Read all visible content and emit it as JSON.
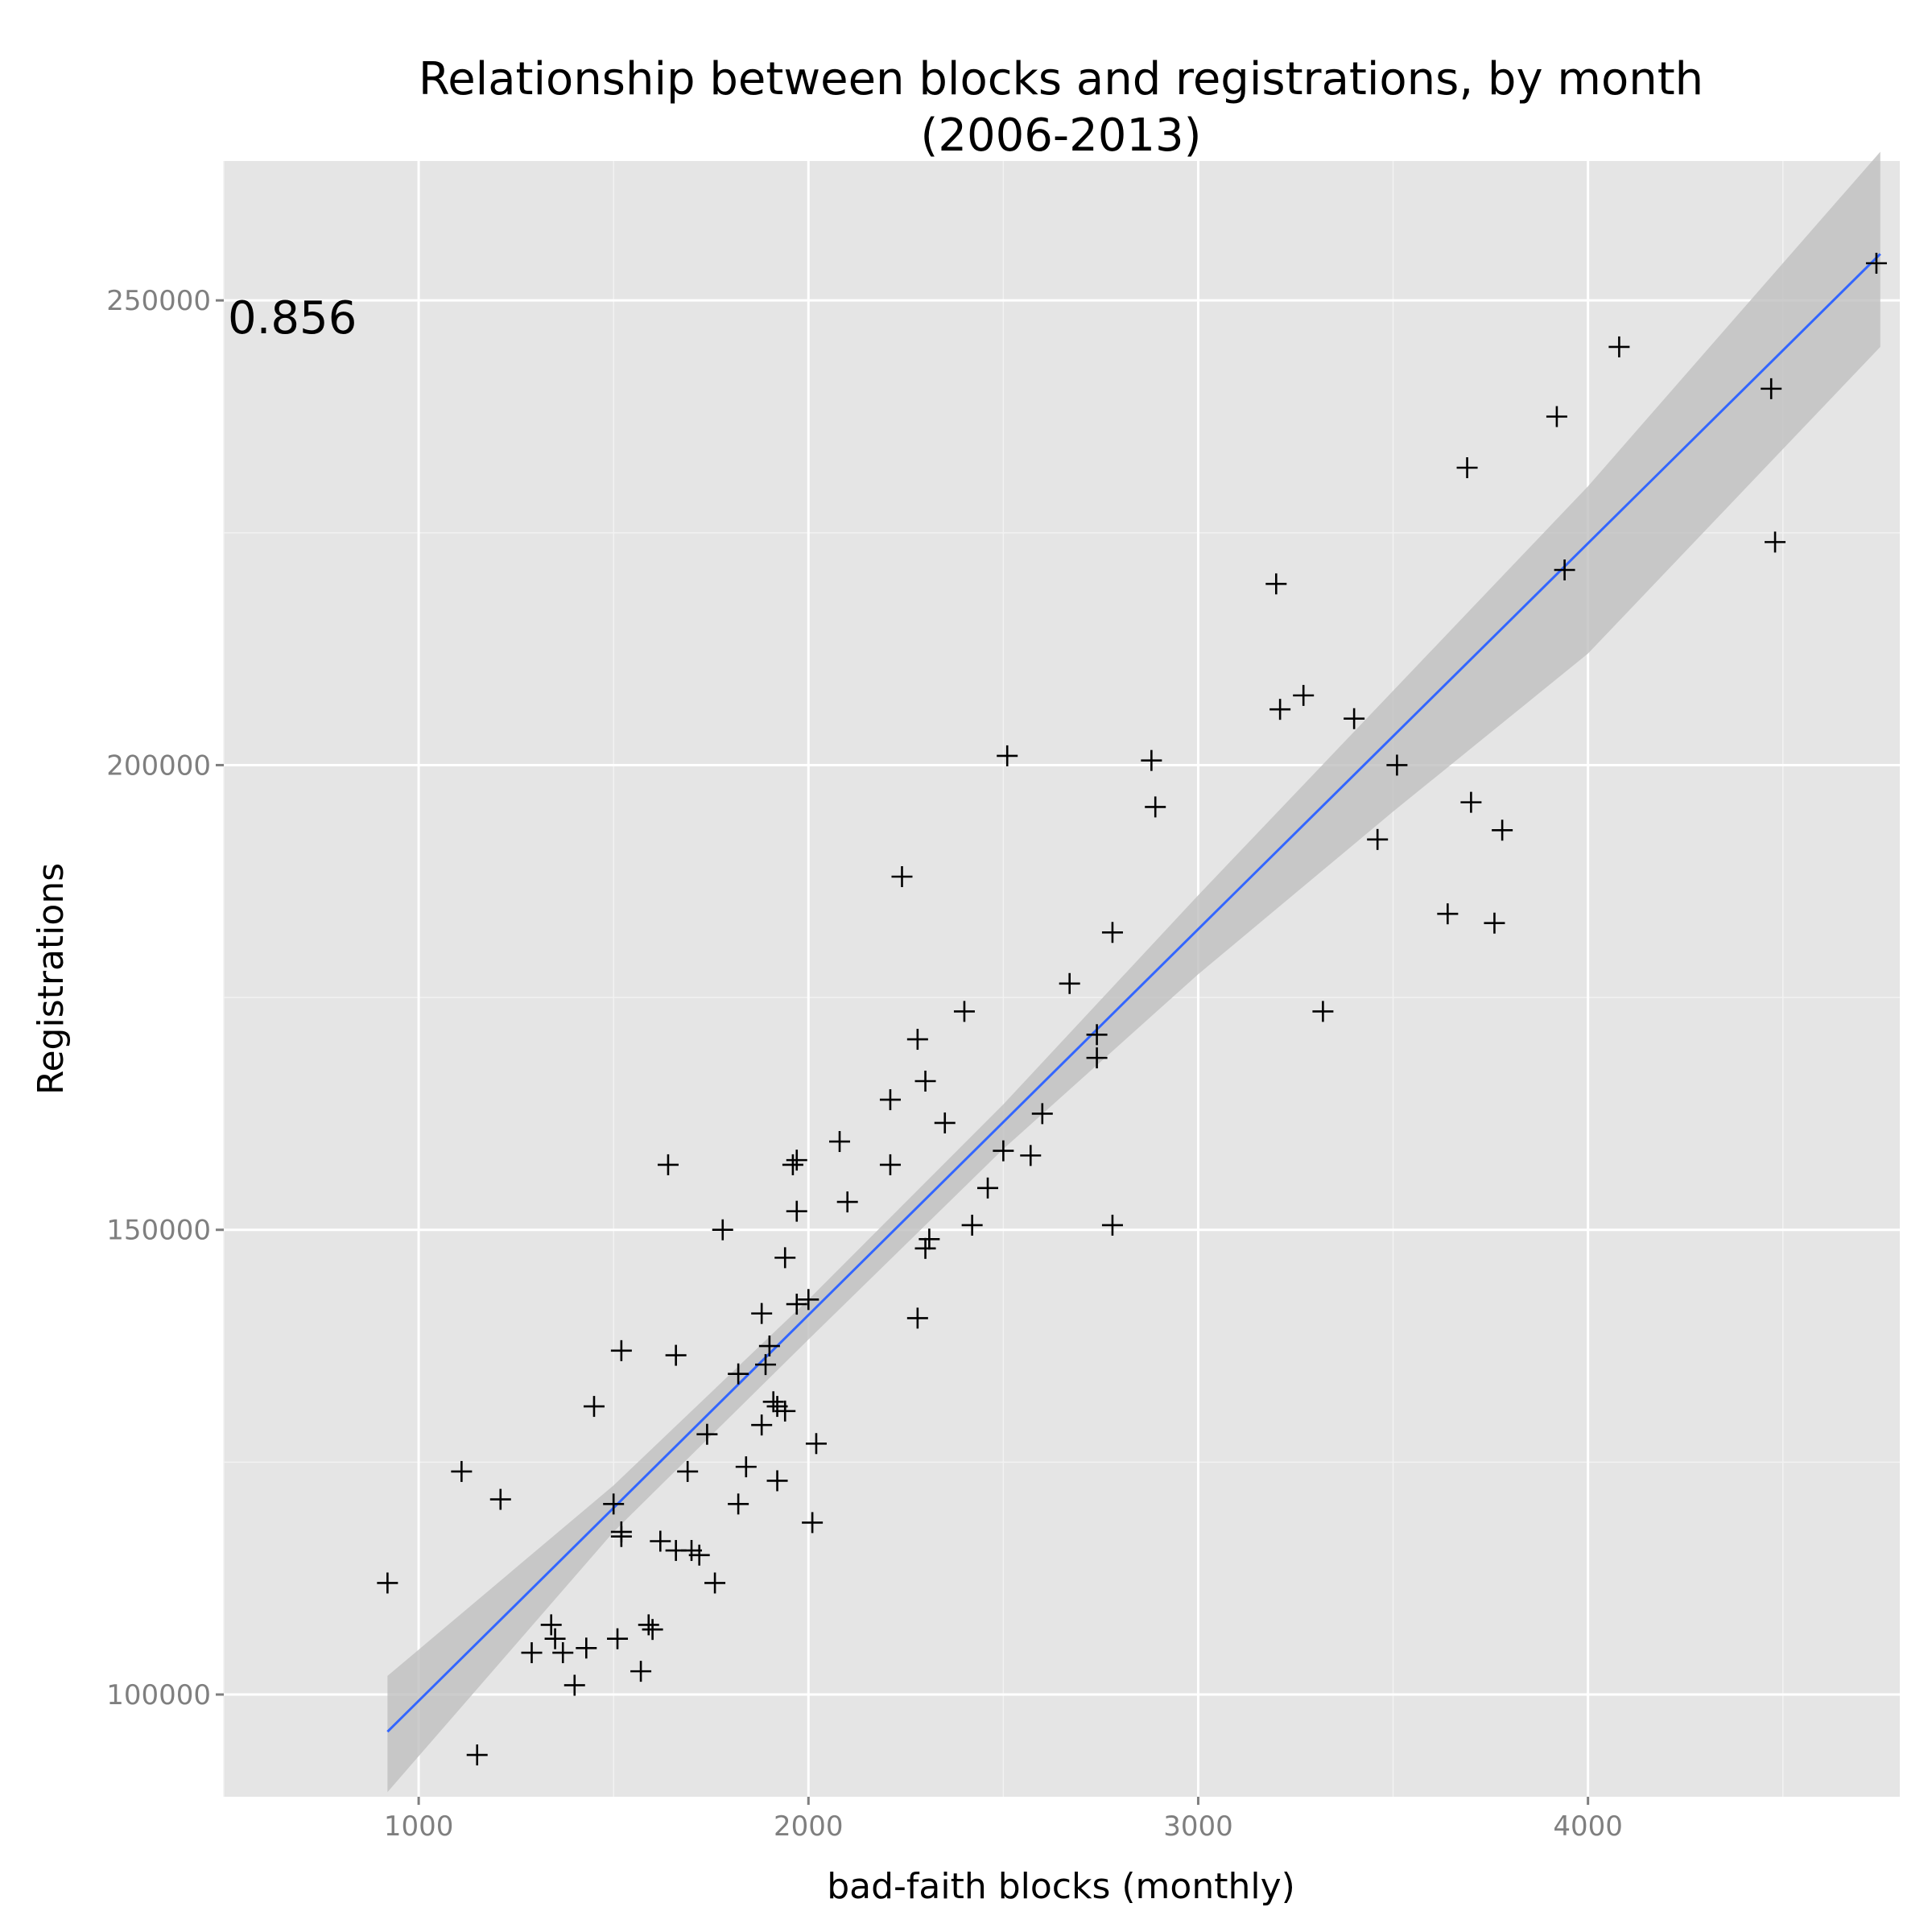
{
  "chart_data": {
    "type": "scatter",
    "title": "Relationship between blocks and registrations, by month",
    "subtitle": "(2006-2013)",
    "xlabel": "bad-faith blocks (monthly)",
    "ylabel": "Registrations",
    "annotation": "0.856",
    "xlim": [
      500,
      4800
    ],
    "ylim": [
      89000,
      265000
    ],
    "x_ticks": [
      1000,
      2000,
      3000,
      4000
    ],
    "y_ticks": [
      100000,
      150000,
      200000,
      250000
    ],
    "x_tick_labels": [
      "1000",
      "2000",
      "3000",
      "4000"
    ],
    "y_tick_labels": [
      "100000",
      "150000",
      "200000",
      "250000"
    ],
    "grid": true,
    "marker": "plus",
    "colors": {
      "panel": "#e5e5e5",
      "grid": "#ffffff",
      "fit_line": "#3366ff",
      "band": "#bfbfbf",
      "points": "#000000",
      "tick_label": "#7f7f7f"
    },
    "fit": {
      "x": [
        920,
        4750
      ],
      "y": [
        96000,
        255000
      ],
      "ci_x": [
        920,
        1500,
        2000,
        2500,
        3000,
        3500,
        4000,
        4750
      ],
      "ci_lower": [
        89500,
        117500,
        138200,
        158700,
        177500,
        195000,
        212000,
        245000
      ],
      "ci_upper": [
        102000,
        122500,
        142500,
        163500,
        186000,
        208000,
        230000,
        266000
      ]
    },
    "points": {
      "x": [
        4740,
        4080,
        3920,
        4470,
        3690,
        4480,
        3940,
        3200,
        3270,
        3210,
        3400,
        2510,
        2880,
        3510,
        2890,
        3700,
        3780,
        3460,
        2240,
        3640,
        3760,
        2780,
        2670,
        2400,
        3320,
        2280,
        2740,
        2740,
        2300,
        2210,
        2600,
        2350,
        2080,
        2500,
        2570,
        1640,
        1960,
        1970,
        2210,
        2460,
        2100,
        1970,
        2780,
        1780,
        2420,
        2310,
        2300,
        1940,
        2000,
        1970,
        1880,
        2280,
        1660,
        1520,
        1900,
        1890,
        1820,
        1450,
        1910,
        1920,
        1940,
        1880,
        1740,
        2020,
        1690,
        1110,
        1840,
        1920,
        1210,
        1820,
        1500,
        2010,
        1520,
        1520,
        1620,
        1660,
        1700,
        1720,
        1760,
        920,
        1590,
        1600,
        1340,
        1350,
        1510,
        1430,
        1290,
        1370,
        1570,
        1400,
        1150
      ],
      "y": [
        254000,
        245000,
        237500,
        240500,
        232000,
        224000,
        221000,
        219500,
        207500,
        206000,
        205000,
        201000,
        200500,
        200000,
        195500,
        196000,
        193000,
        192000,
        188000,
        184000,
        183000,
        182000,
        176500,
        173500,
        173500,
        170500,
        171000,
        168500,
        166000,
        164000,
        162500,
        161500,
        159500,
        158500,
        158000,
        157000,
        157000,
        157500,
        157000,
        154500,
        153000,
        152000,
        150500,
        150000,
        150500,
        149000,
        148000,
        147000,
        142500,
        142000,
        141000,
        140500,
        136500,
        137000,
        137500,
        135500,
        134500,
        131000,
        131500,
        131000,
        130500,
        129000,
        128000,
        127000,
        124000,
        124000,
        124500,
        123000,
        121000,
        120500,
        120500,
        118500,
        117500,
        117000,
        116500,
        115500,
        115500,
        115000,
        112000,
        112000,
        107500,
        107000,
        107500,
        106000,
        106000,
        105000,
        104500,
        104500,
        102500,
        101000,
        93500
      ]
    }
  }
}
